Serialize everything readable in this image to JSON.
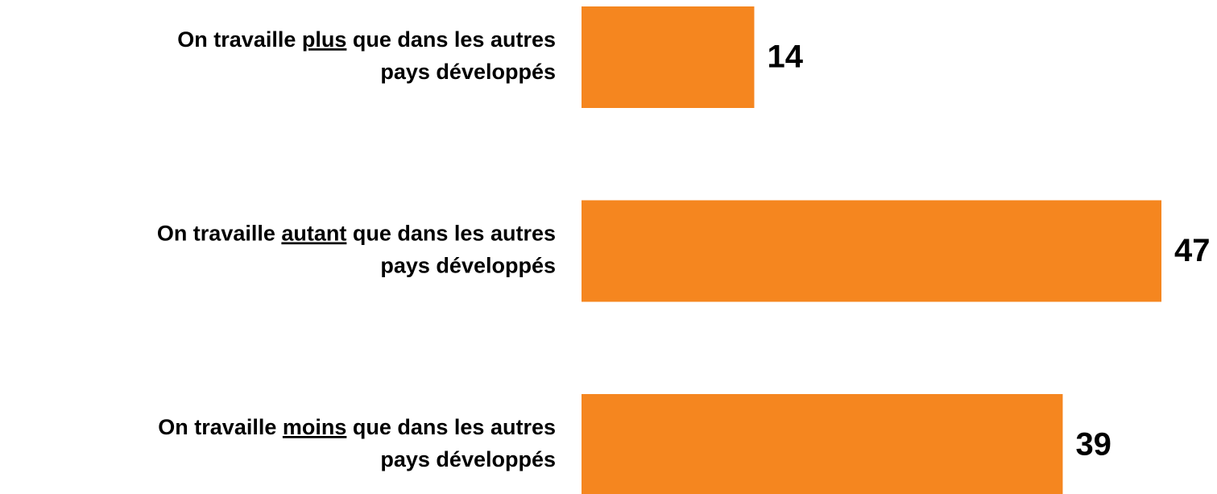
{
  "chart_data": {
    "type": "bar",
    "orientation": "horizontal",
    "color": "#f5861f",
    "categories": [
      [
        "On travaille ",
        "plus",
        " que dans les autres",
        "pays développés"
      ],
      [
        "On travaille ",
        "autant",
        " que dans les autres",
        "pays développés"
      ],
      [
        "On travaille ",
        "moins",
        " que dans les autres",
        "pays développés"
      ]
    ],
    "values": [
      14,
      47,
      39
    ]
  }
}
